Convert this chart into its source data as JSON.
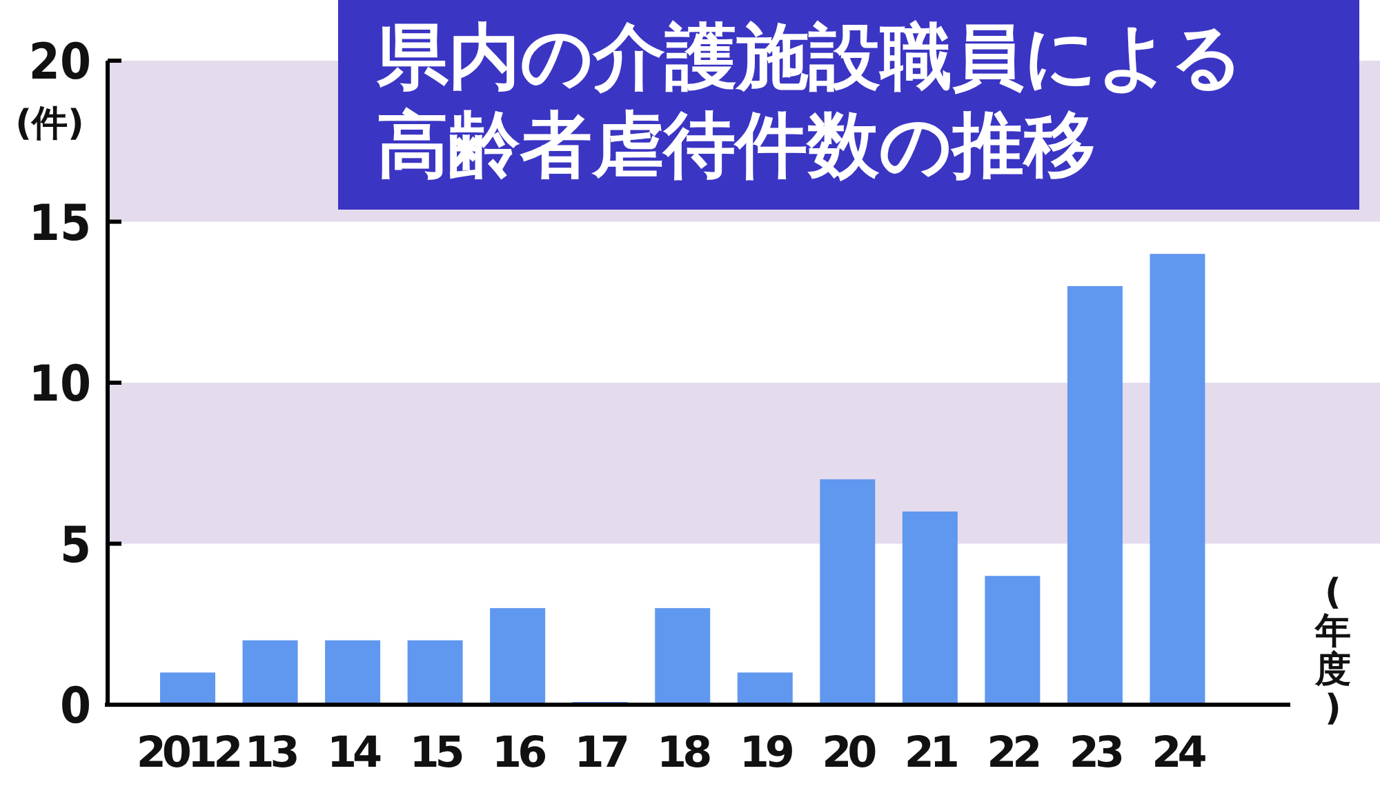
{
  "chart_data": {
    "type": "bar",
    "title": "県内の介護施設職員による高齢者虐待件数の推移",
    "ylabel": "(件)",
    "xlabel": "(年度)",
    "categories": [
      "2012",
      "13",
      "14",
      "15",
      "16",
      "17",
      "18",
      "19",
      "20",
      "21",
      "22",
      "23",
      "24"
    ],
    "values": [
      1,
      2,
      2,
      2,
      3,
      0,
      3,
      1,
      7,
      6,
      4,
      13,
      14
    ],
    "color": "#6097ef",
    "ylim": [
      0,
      20
    ],
    "yticks": [
      0,
      5,
      10,
      15,
      20
    ],
    "bands": [
      {
        "axis": "y",
        "from": 5,
        "to": 10,
        "color": "#e4dced"
      },
      {
        "axis": "y",
        "from": 15,
        "to": 20,
        "color": "#e4dced"
      }
    ]
  }
}
